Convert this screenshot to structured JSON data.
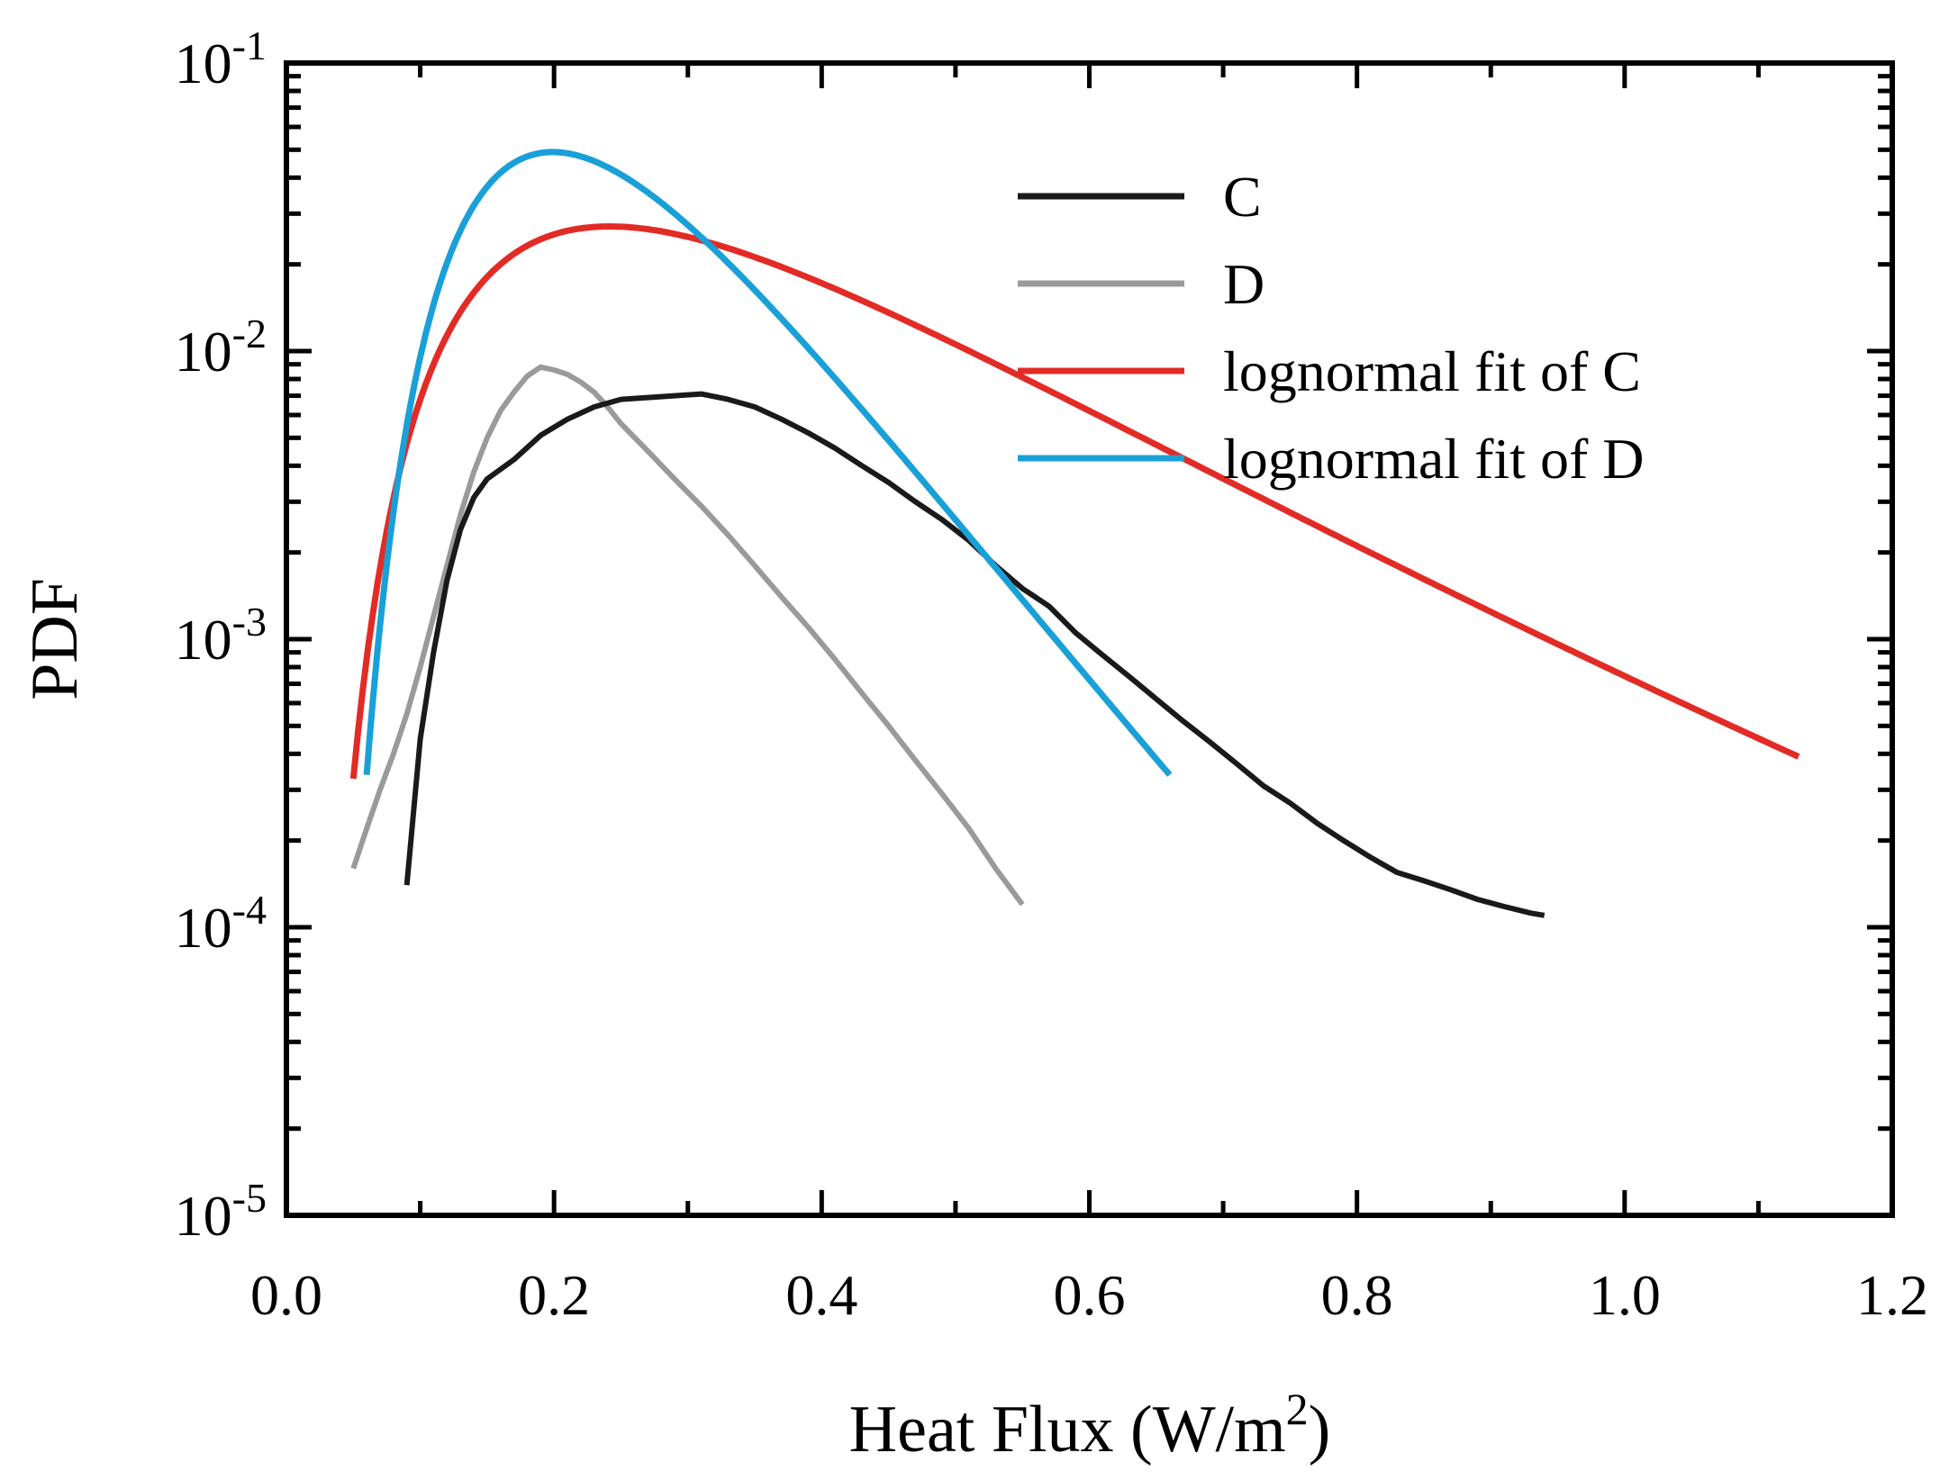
{
  "chart_data": {
    "type": "line",
    "xlabel": "Heat Flux (W/m",
    "xlabel_sup": "2",
    "xlabel_close": ")",
    "ylabel": "PDF",
    "xlim": [
      0.0,
      1.2
    ],
    "ylim": [
      1e-05,
      0.1
    ],
    "yscale": "log",
    "grid": false,
    "legend_position": "top-right",
    "x_ticks": [
      "0.0",
      "0.2",
      "0.4",
      "0.6",
      "0.8",
      "1.0",
      "1.2"
    ],
    "y_ticks": [
      {
        "base": "10",
        "exp": "-1"
      },
      {
        "base": "10",
        "exp": "-2"
      },
      {
        "base": "10",
        "exp": "-3"
      },
      {
        "base": "10",
        "exp": "-4"
      },
      {
        "base": "10",
        "exp": "-5"
      }
    ],
    "series": [
      {
        "name": "C",
        "color": "#1a1a1a",
        "x": [
          0.09,
          0.1,
          0.11,
          0.12,
          0.13,
          0.14,
          0.15,
          0.17,
          0.19,
          0.21,
          0.23,
          0.25,
          0.27,
          0.29,
          0.31,
          0.33,
          0.35,
          0.37,
          0.39,
          0.41,
          0.43,
          0.45,
          0.47,
          0.49,
          0.51,
          0.53,
          0.55,
          0.57,
          0.59,
          0.61,
          0.63,
          0.65,
          0.67,
          0.69,
          0.71,
          0.73,
          0.75,
          0.77,
          0.79,
          0.81,
          0.83,
          0.85,
          0.87,
          0.89,
          0.91,
          0.93,
          0.94
        ],
        "y": [
          0.00014,
          0.00045,
          0.0009,
          0.0016,
          0.0024,
          0.0031,
          0.0036,
          0.0042,
          0.0051,
          0.0058,
          0.0064,
          0.0068,
          0.0069,
          0.007,
          0.0071,
          0.0068,
          0.0064,
          0.0058,
          0.0052,
          0.0046,
          0.004,
          0.0035,
          0.003,
          0.0026,
          0.0022,
          0.0018,
          0.0015,
          0.0013,
          0.00105,
          0.00088,
          0.00074,
          0.00062,
          0.00052,
          0.00044,
          0.00037,
          0.00031,
          0.00027,
          0.00023,
          0.0002,
          0.000175,
          0.000155,
          0.000145,
          0.000135,
          0.000125,
          0.000118,
          0.000112,
          0.00011
        ]
      },
      {
        "name": "D",
        "color": "#999b9b",
        "x": [
          0.05,
          0.06,
          0.07,
          0.08,
          0.09,
          0.1,
          0.11,
          0.12,
          0.13,
          0.14,
          0.15,
          0.16,
          0.17,
          0.18,
          0.19,
          0.2,
          0.21,
          0.22,
          0.23,
          0.24,
          0.25,
          0.27,
          0.29,
          0.31,
          0.33,
          0.35,
          0.37,
          0.39,
          0.41,
          0.43,
          0.45,
          0.47,
          0.49,
          0.51,
          0.53,
          0.55
        ],
        "y": [
          0.00016,
          0.00022,
          0.0003,
          0.0004,
          0.00055,
          0.0008,
          0.0012,
          0.0018,
          0.0027,
          0.0038,
          0.005,
          0.0062,
          0.0072,
          0.0082,
          0.0088,
          0.0086,
          0.0083,
          0.0078,
          0.0072,
          0.0064,
          0.0056,
          0.0045,
          0.0036,
          0.0029,
          0.0023,
          0.0018,
          0.0014,
          0.0011,
          0.00085,
          0.00065,
          0.0005,
          0.00038,
          0.00029,
          0.00022,
          0.00016,
          0.00012
        ]
      },
      {
        "name": "lognormal fit of C",
        "color": "#e32b26",
        "fit": {
          "mu": -1.14,
          "sigma": 0.53
        },
        "x_range": [
          0.05,
          1.13
        ]
      },
      {
        "name": "lognormal fit of D",
        "color": "#1aa0d8",
        "fit": {
          "mu": -1.47,
          "sigma": 0.38
        },
        "x_range": [
          0.06,
          0.66
        ]
      }
    ]
  }
}
